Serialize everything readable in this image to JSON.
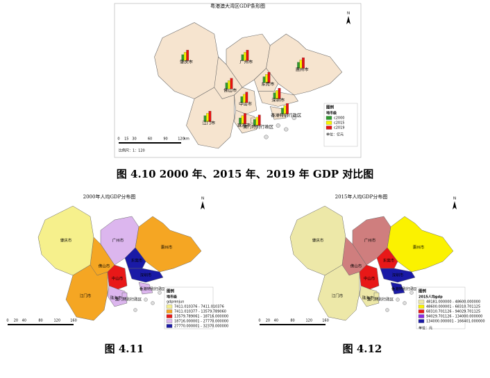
{
  "figures": [
    {
      "title": "粤港澳大湾区GDP条形图",
      "north": "N",
      "regions": [
        "肇庆市",
        "广州市",
        "惠州市",
        "佛山市",
        "东莞市",
        "深圳市",
        "江门市",
        "中山市",
        "珠海市",
        "香港特别行政区",
        "澳门特别行政区"
      ],
      "colors": [
        "#f6e4cf",
        "#f6e4cf",
        "#f6e4cf",
        "#f6e4cf",
        "#f6e4cf",
        "#f6e4cf",
        "#f6e4cf",
        "#f6e4cf",
        "#f6e4cf",
        "#f6e4cf",
        "#f6e4cf"
      ],
      "legend": {
        "title": "图例",
        "subtitle": "地市级",
        "items": [
          "c2000",
          "c2015",
          "c2019"
        ],
        "colors": [
          "#2e9b2e",
          "#f5f500",
          "#e81010"
        ],
        "unit": "单位：亿元"
      },
      "scale": [
        0,
        15,
        30,
        60,
        90,
        120
      ],
      "scale_unit": "km",
      "ratio": "比例尺：1：120"
    },
    {
      "title": "2000年人均GDP分布图",
      "north": "N",
      "regions": [
        "肇庆市",
        "广州市",
        "惠州市",
        "佛山市",
        "东莞市",
        "深圳市",
        "江门市",
        "中山市",
        "珠海市",
        "香港特别行政区",
        "澳门特别行政区"
      ],
      "colors": [
        "#f6f08c",
        "#dcb6ee",
        "#f5a623",
        "#f5a623",
        "#1a1aa6",
        "#1a1aa6",
        "#f5a623",
        "#e81818",
        "#dcb6ee",
        "#dcb6ee",
        "#dcb6ee"
      ],
      "legend": {
        "title": "图例",
        "subtitle": "地市级",
        "field": "gdprenjun",
        "items": [
          "7411.010376 - 7411.010376",
          "7411.010377 - 13579.789060",
          "13579.789061 - 18716.000000",
          "18716.000001 - 27770.000000",
          "27770.000001 - 32370.000000"
        ],
        "colors": [
          "#f6f08c",
          "#f5a623",
          "#e81818",
          "#dcb6ee",
          "#1a1aa6"
        ]
      },
      "scale": [
        0,
        20,
        40,
        80,
        120,
        160
      ]
    },
    {
      "title": "2015年人均GDP分布图",
      "north": "N",
      "regions": [
        "肇庆市",
        "广州市",
        "惠州市",
        "佛山市",
        "东莞市",
        "深圳市",
        "江门市",
        "中山市",
        "珠海市",
        "香港特别行政区",
        "澳门特别行政区"
      ],
      "colors": [
        "#ede8a8",
        "#cf7e7e",
        "#fbf200",
        "#cf7e7e",
        "#e81818",
        "#1a1aa6",
        "#ede8a8",
        "#e81818",
        "#ede8a8",
        "#1a1aa6",
        "#ede8a8"
      ],
      "legend": {
        "title": "图例",
        "subtitle": "2015人均gdp",
        "items": [
          "48181.000000 - 48600.000000",
          "48600.000001 - 68310.701125",
          "68310.701126 - 94029.701125",
          "94029.701126 - 134000.000000",
          "134000.000001 - 166401.000000"
        ],
        "colors": [
          "#ede8a8",
          "#fbf200",
          "#e81818",
          "#8a2be2",
          "#1a1aa6"
        ],
        "unit": "单位：元"
      },
      "scale": [
        0,
        20,
        40,
        80,
        120,
        160
      ]
    }
  ],
  "captions": [
    "图 4.10 2000 年、2015 年、2019 年 GDP 对比图",
    "图 4.11",
    "图 4.12"
  ]
}
